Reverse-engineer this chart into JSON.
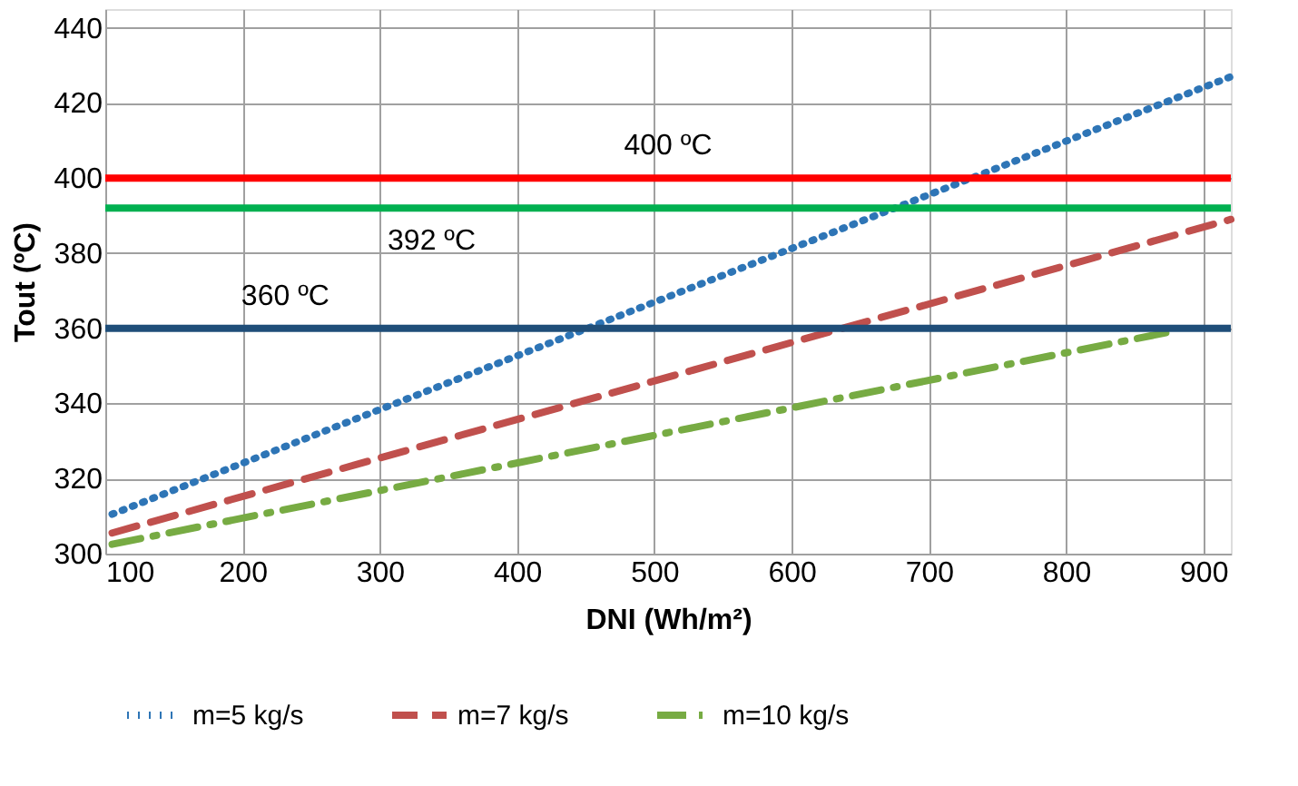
{
  "chart_data": {
    "type": "line",
    "xlabel": "DNI (Wh/m²)",
    "ylabel": "Tout (ºC)",
    "xlim": [
      100,
      920
    ],
    "ylim": [
      300,
      445
    ],
    "xticks": [
      100,
      200,
      300,
      400,
      500,
      600,
      700,
      800,
      900
    ],
    "yticks": [
      300,
      320,
      340,
      360,
      380,
      400,
      420,
      440
    ],
    "grid": true,
    "legend": "bottom",
    "marker": "none",
    "series": [
      {
        "name": "m=5 kg/s",
        "color": "#2e75b6",
        "line_style": "dotted",
        "x": [
          105,
          920
        ],
        "values": [
          310.5,
          427
        ]
      },
      {
        "name": "m=7 kg/s",
        "color": "#c0504d",
        "line_style": "dashed",
        "x": [
          105,
          920
        ],
        "values": [
          305.5,
          389
        ]
      },
      {
        "name": "m=10 kg/s",
        "color": "#77ab43",
        "line_style": "dashdot",
        "x": [
          105,
          875
        ],
        "values": [
          302.5,
          359
        ]
      }
    ],
    "ref_lines": [
      {
        "axis": "y",
        "value": 400,
        "label": "400 ºC",
        "color": "#ff0000"
      },
      {
        "axis": "y",
        "value": 392,
        "label": "392 ºC",
        "color": "#00b050"
      },
      {
        "axis": "y",
        "value": 360,
        "label": "360 ºC",
        "color": "#1f4e79"
      }
    ]
  }
}
